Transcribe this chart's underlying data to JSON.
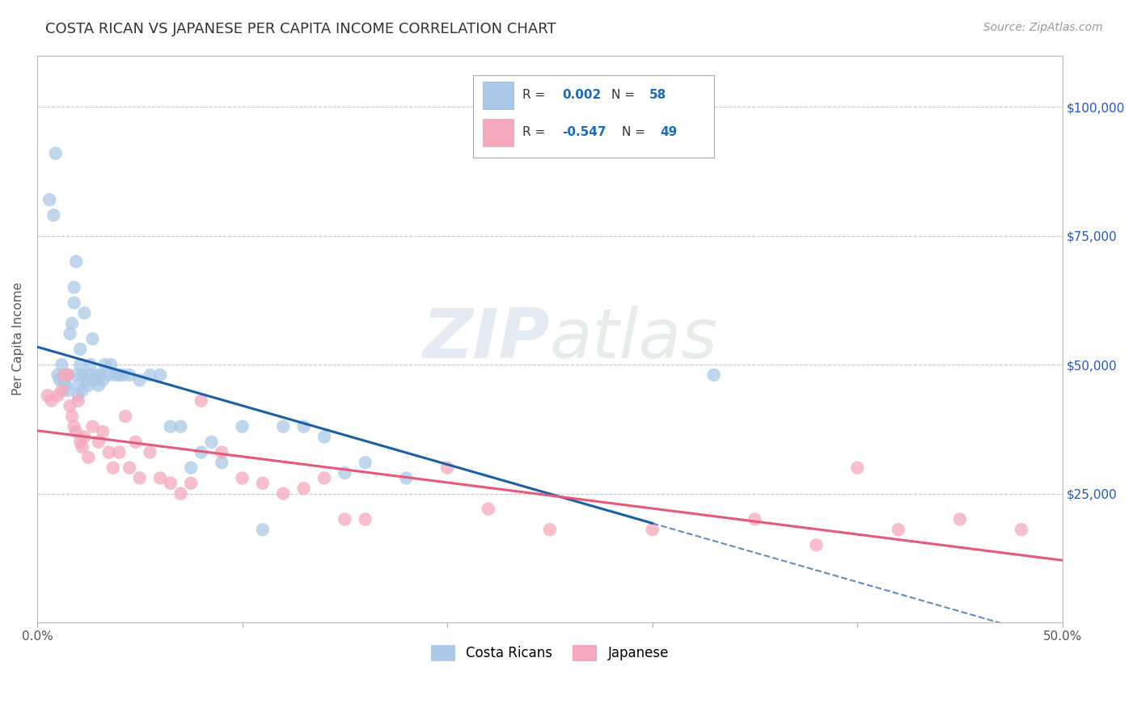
{
  "title": "COSTA RICAN VS JAPANESE PER CAPITA INCOME CORRELATION CHART",
  "source": "Source: ZipAtlas.com",
  "ylabel": "Per Capita Income",
  "xmin": 0.0,
  "xmax": 0.5,
  "ymin": 0,
  "ymax": 110000,
  "yticks": [
    0,
    25000,
    50000,
    75000,
    100000
  ],
  "background_color": "#ffffff",
  "grid_color": "#c8c8c8",
  "blue_color": "#aac9e8",
  "pink_color": "#f5a8bc",
  "blue_line_color": "#1a5fa8",
  "pink_line_color": "#e85878",
  "blue_line_solid_end": 0.3,
  "watermark": "ZIPatlas",
  "legend_R1": "0.002",
  "legend_N1": "58",
  "legend_R2": "-0.547",
  "legend_N2": "49",
  "costa_ricans_x": [
    0.006,
    0.008,
    0.009,
    0.01,
    0.011,
    0.012,
    0.013,
    0.014,
    0.015,
    0.015,
    0.016,
    0.017,
    0.018,
    0.018,
    0.019,
    0.019,
    0.02,
    0.02,
    0.021,
    0.021,
    0.022,
    0.022,
    0.023,
    0.024,
    0.025,
    0.025,
    0.026,
    0.027,
    0.028,
    0.029,
    0.03,
    0.031,
    0.032,
    0.033,
    0.035,
    0.036,
    0.038,
    0.04,
    0.042,
    0.045,
    0.05,
    0.055,
    0.06,
    0.065,
    0.07,
    0.075,
    0.08,
    0.085,
    0.09,
    0.1,
    0.11,
    0.12,
    0.13,
    0.14,
    0.15,
    0.16,
    0.18,
    0.33
  ],
  "costa_ricans_y": [
    82000,
    79000,
    91000,
    48000,
    47000,
    50000,
    47000,
    46000,
    45000,
    48000,
    56000,
    58000,
    62000,
    65000,
    48000,
    70000,
    44000,
    46000,
    50000,
    53000,
    48000,
    45000,
    60000,
    47000,
    48000,
    46000,
    50000,
    55000,
    47000,
    48000,
    46000,
    48000,
    47000,
    50000,
    48000,
    50000,
    48000,
    48000,
    48000,
    48000,
    47000,
    48000,
    48000,
    38000,
    38000,
    30000,
    33000,
    35000,
    31000,
    38000,
    18000,
    38000,
    38000,
    36000,
    29000,
    31000,
    28000,
    48000
  ],
  "japanese_x": [
    0.005,
    0.007,
    0.01,
    0.012,
    0.013,
    0.015,
    0.016,
    0.017,
    0.018,
    0.019,
    0.02,
    0.021,
    0.022,
    0.023,
    0.025,
    0.027,
    0.03,
    0.032,
    0.035,
    0.037,
    0.04,
    0.043,
    0.045,
    0.048,
    0.05,
    0.055,
    0.06,
    0.065,
    0.07,
    0.075,
    0.08,
    0.09,
    0.1,
    0.11,
    0.12,
    0.13,
    0.14,
    0.15,
    0.16,
    0.2,
    0.22,
    0.25,
    0.3,
    0.35,
    0.38,
    0.4,
    0.42,
    0.45,
    0.48
  ],
  "japanese_y": [
    44000,
    43000,
    44000,
    45000,
    48000,
    48000,
    42000,
    40000,
    38000,
    37000,
    43000,
    35000,
    34000,
    36000,
    32000,
    38000,
    35000,
    37000,
    33000,
    30000,
    33000,
    40000,
    30000,
    35000,
    28000,
    33000,
    28000,
    27000,
    25000,
    27000,
    43000,
    33000,
    28000,
    27000,
    25000,
    26000,
    28000,
    20000,
    20000,
    30000,
    22000,
    18000,
    18000,
    20000,
    15000,
    30000,
    18000,
    20000,
    18000
  ]
}
